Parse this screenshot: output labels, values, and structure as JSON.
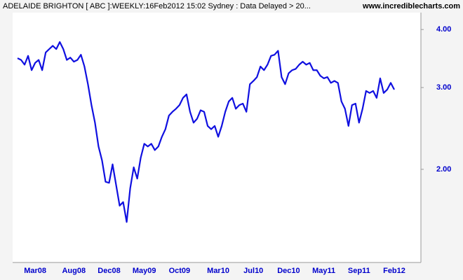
{
  "chart_data": {
    "type": "line",
    "title": "ADELAIDE BRIGHTON [ ABC ]:WEEKLY:16Feb2012 15:02 Sydney : Data Delayed > 20...",
    "source": "www.incrediblecharts.com",
    "categories": [
      null,
      null,
      null,
      null,
      null,
      "Mar08",
      null,
      null,
      null,
      null,
      null,
      null,
      null,
      null,
      null,
      null,
      "Aug08",
      null,
      null,
      null,
      null,
      null,
      null,
      null,
      null,
      null,
      "Dec08",
      null,
      null,
      null,
      null,
      null,
      null,
      null,
      null,
      null,
      "May09",
      null,
      null,
      null,
      null,
      null,
      null,
      null,
      null,
      null,
      "Oct09",
      null,
      null,
      null,
      null,
      null,
      null,
      null,
      null,
      null,
      null,
      "Mar10",
      null,
      null,
      null,
      null,
      null,
      null,
      null,
      null,
      null,
      "Jul10",
      null,
      null,
      null,
      null,
      null,
      null,
      null,
      null,
      null,
      "Dec10",
      null,
      null,
      null,
      null,
      null,
      null,
      null,
      null,
      null,
      "May11",
      null,
      null,
      null,
      null,
      null,
      null,
      null,
      null,
      null,
      "Sep11",
      null,
      null,
      null,
      null,
      null,
      null,
      null,
      null,
      null,
      "Feb12"
    ],
    "values": [
      3.47,
      3.44,
      3.36,
      3.51,
      3.27,
      3.39,
      3.44,
      3.27,
      3.57,
      3.63,
      3.69,
      3.63,
      3.76,
      3.63,
      3.44,
      3.48,
      3.41,
      3.44,
      3.53,
      3.33,
      3.05,
      2.75,
      2.52,
      2.24,
      2.09,
      1.88,
      1.87,
      2.05,
      1.85,
      1.67,
      1.7,
      1.54,
      1.82,
      2.02,
      1.91,
      2.12,
      2.27,
      2.24,
      2.27,
      2.2,
      2.24,
      2.35,
      2.44,
      2.61,
      2.66,
      2.7,
      2.75,
      2.85,
      2.9,
      2.66,
      2.52,
      2.57,
      2.68,
      2.66,
      2.48,
      2.44,
      2.48,
      2.35,
      2.48,
      2.66,
      2.8,
      2.85,
      2.7,
      2.75,
      2.77,
      2.66,
      3.05,
      3.1,
      3.16,
      3.33,
      3.27,
      3.36,
      3.51,
      3.53,
      3.6,
      3.16,
      3.05,
      3.22,
      3.27,
      3.29,
      3.36,
      3.41,
      3.36,
      3.39,
      3.27,
      3.27,
      3.18,
      3.14,
      3.16,
      3.07,
      3.1,
      3.07,
      2.8,
      2.7,
      2.48,
      2.75,
      2.77,
      2.52,
      2.7,
      2.95,
      2.92,
      2.95,
      2.85,
      3.14,
      2.92,
      2.97,
      3.07,
      2.97
    ],
    "color": "#1010e0",
    "ylim": [
      1.26,
      4.35
    ],
    "yticks": [
      {
        "value": 2,
        "label": "2.00"
      },
      {
        "value": 3,
        "label": "3.00"
      },
      {
        "value": 4,
        "label": "4.00"
      }
    ],
    "log_scale": true,
    "grid": false
  }
}
